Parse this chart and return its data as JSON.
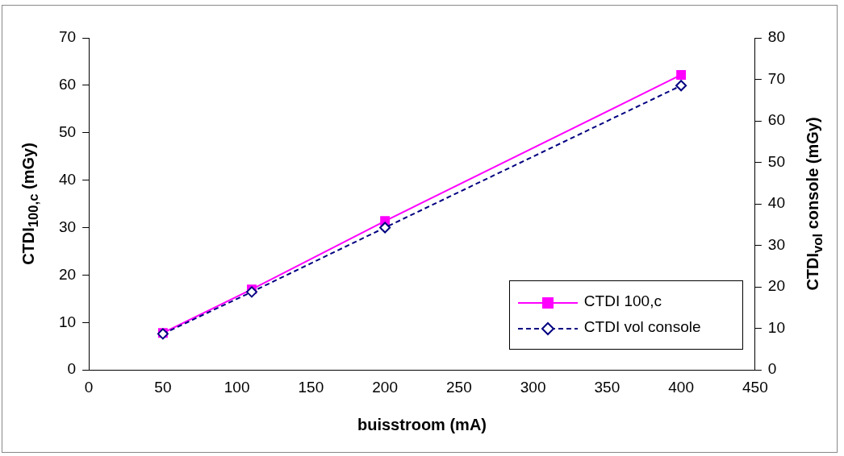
{
  "chart_data": {
    "type": "line",
    "xlabel": "buisstroom (mA)",
    "ylabel": "CTDI$_{100,c}$ (mGy)",
    "y2label": "CTDI$_{vol}$ console (mGy)",
    "x": [
      50,
      110,
      200,
      400
    ],
    "series": [
      {
        "name": "CTDI 100,c",
        "color": "#ff00ff",
        "values": [
          7.8,
          17.0,
          31.4,
          62.2
        ],
        "marker": "square",
        "line_style": "solid"
      },
      {
        "name": "CTDI vol console",
        "color": "#000080",
        "values": [
          8.7,
          18.8,
          34.3,
          68.5
        ],
        "axis": "y2",
        "marker": "diamond",
        "line_style": "dashed"
      }
    ],
    "xlim": [
      0,
      450
    ],
    "xticks": [
      0,
      50,
      100,
      150,
      200,
      250,
      300,
      350,
      400,
      450
    ],
    "ylim": [
      0,
      70
    ],
    "yticks": [
      0,
      10,
      20,
      30,
      40,
      50,
      60,
      70
    ],
    "y2lim": [
      0,
      80
    ],
    "y2ticks": [
      0,
      10,
      20,
      30,
      40,
      50,
      60,
      70,
      80
    ],
    "grid": false,
    "legend": "bottom right"
  }
}
